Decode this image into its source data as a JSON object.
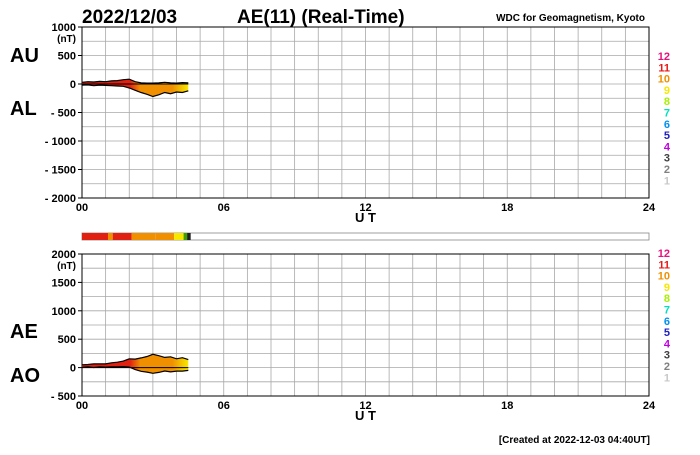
{
  "header": {
    "date": "2022/12/03",
    "title": "AE(11) (Real-Time)",
    "source": "WDC for Geomagnetism, Kyoto"
  },
  "footer": {
    "created": "[Created at 2022-12-03 04:40UT]"
  },
  "color_scale": {
    "labels": [
      "12",
      "11",
      "10",
      "9",
      "8",
      "7",
      "6",
      "5",
      "4",
      "3",
      "2",
      "1"
    ],
    "colors": [
      "#e8107c",
      "#e81818",
      "#f09000",
      "#f8e800",
      "#a8f000",
      "#00e0c0",
      "#0090f0",
      "#2020c0",
      "#c000e0",
      "#404040",
      "#808080",
      "#c8c8c8"
    ]
  },
  "station_bar": {
    "segments": [
      {
        "from": 0.0,
        "to": 1.1,
        "color": "#e02010"
      },
      {
        "from": 1.1,
        "to": 1.3,
        "color": "#f09000"
      },
      {
        "from": 1.3,
        "to": 2.1,
        "color": "#e02010"
      },
      {
        "from": 2.1,
        "to": 3.1,
        "color": "#f09000"
      },
      {
        "from": 3.1,
        "to": 3.9,
        "color": "#f09000"
      },
      {
        "from": 3.9,
        "to": 4.3,
        "color": "#f8e800"
      },
      {
        "from": 4.3,
        "to": 4.45,
        "color": "#40a000"
      },
      {
        "from": 4.45,
        "to": 4.6,
        "color": "#202020"
      }
    ],
    "max_hours": 24
  },
  "chart_data": [
    {
      "type": "area",
      "panel_labels": [
        "AU",
        "AL"
      ],
      "y_unit": "(nT)",
      "ylim": [
        -2000,
        1000
      ],
      "y_ticks": [
        1000,
        500,
        0,
        -500,
        -1000,
        -1500,
        -2000
      ],
      "y_tick_labels": [
        "1000",
        "500",
        "0",
        "- 500",
        "- 1000",
        "- 1500",
        "- 2000"
      ],
      "xlim": [
        0,
        24
      ],
      "x_ticks": [
        0,
        6,
        12,
        18,
        24
      ],
      "x_tick_labels": [
        "00",
        "06",
        "12",
        "18",
        "24"
      ],
      "xlabel": "U T",
      "grid": true,
      "series": [
        {
          "name": "AU",
          "x": [
            0,
            0.25,
            0.5,
            0.75,
            1,
            1.25,
            1.5,
            1.75,
            2,
            2.25,
            2.5,
            2.75,
            3,
            3.25,
            3.5,
            3.75,
            4,
            4.25,
            4.5
          ],
          "y": [
            30,
            40,
            35,
            45,
            40,
            55,
            60,
            75,
            85,
            40,
            20,
            15,
            15,
            20,
            30,
            20,
            15,
            25,
            20
          ]
        },
        {
          "name": "AL",
          "x": [
            0,
            0.25,
            0.5,
            0.75,
            1,
            1.25,
            1.5,
            1.75,
            2,
            2.25,
            2.5,
            2.75,
            3,
            3.25,
            3.5,
            3.75,
            4,
            4.25,
            4.5
          ],
          "y": [
            -20,
            -15,
            -30,
            -20,
            -25,
            -30,
            -35,
            -40,
            -70,
            -110,
            -150,
            -180,
            -220,
            -190,
            -150,
            -170,
            -140,
            -150,
            -120
          ]
        }
      ]
    },
    {
      "type": "area",
      "panel_labels": [
        "AE",
        "AO"
      ],
      "y_unit": "(nT)",
      "ylim": [
        -500,
        2000
      ],
      "y_ticks": [
        2000,
        1500,
        1000,
        500,
        0,
        -500
      ],
      "y_tick_labels": [
        "2000",
        "1500",
        "1000",
        "500",
        "0",
        "- 500"
      ],
      "xlim": [
        0,
        24
      ],
      "x_ticks": [
        0,
        6,
        12,
        18,
        24
      ],
      "x_tick_labels": [
        "00",
        "06",
        "12",
        "18",
        "24"
      ],
      "xlabel": "U T",
      "grid": true,
      "series": [
        {
          "name": "AE",
          "x": [
            0,
            0.25,
            0.5,
            0.75,
            1,
            1.25,
            1.5,
            1.75,
            2,
            2.25,
            2.5,
            2.75,
            3,
            3.25,
            3.5,
            3.75,
            4,
            4.25,
            4.5
          ],
          "y": [
            50,
            55,
            65,
            65,
            65,
            85,
            95,
            115,
            155,
            150,
            170,
            195,
            235,
            210,
            180,
            190,
            155,
            175,
            140
          ]
        },
        {
          "name": "AO",
          "x": [
            0,
            0.25,
            0.5,
            0.75,
            1,
            1.25,
            1.5,
            1.75,
            2,
            2.25,
            2.5,
            2.75,
            3,
            3.25,
            3.5,
            3.75,
            4,
            4.25,
            4.5
          ],
          "y": [
            5,
            12,
            2,
            12,
            8,
            12,
            12,
            18,
            8,
            -35,
            -65,
            -80,
            -100,
            -85,
            -60,
            -75,
            -62,
            -62,
            -50
          ]
        }
      ]
    }
  ]
}
